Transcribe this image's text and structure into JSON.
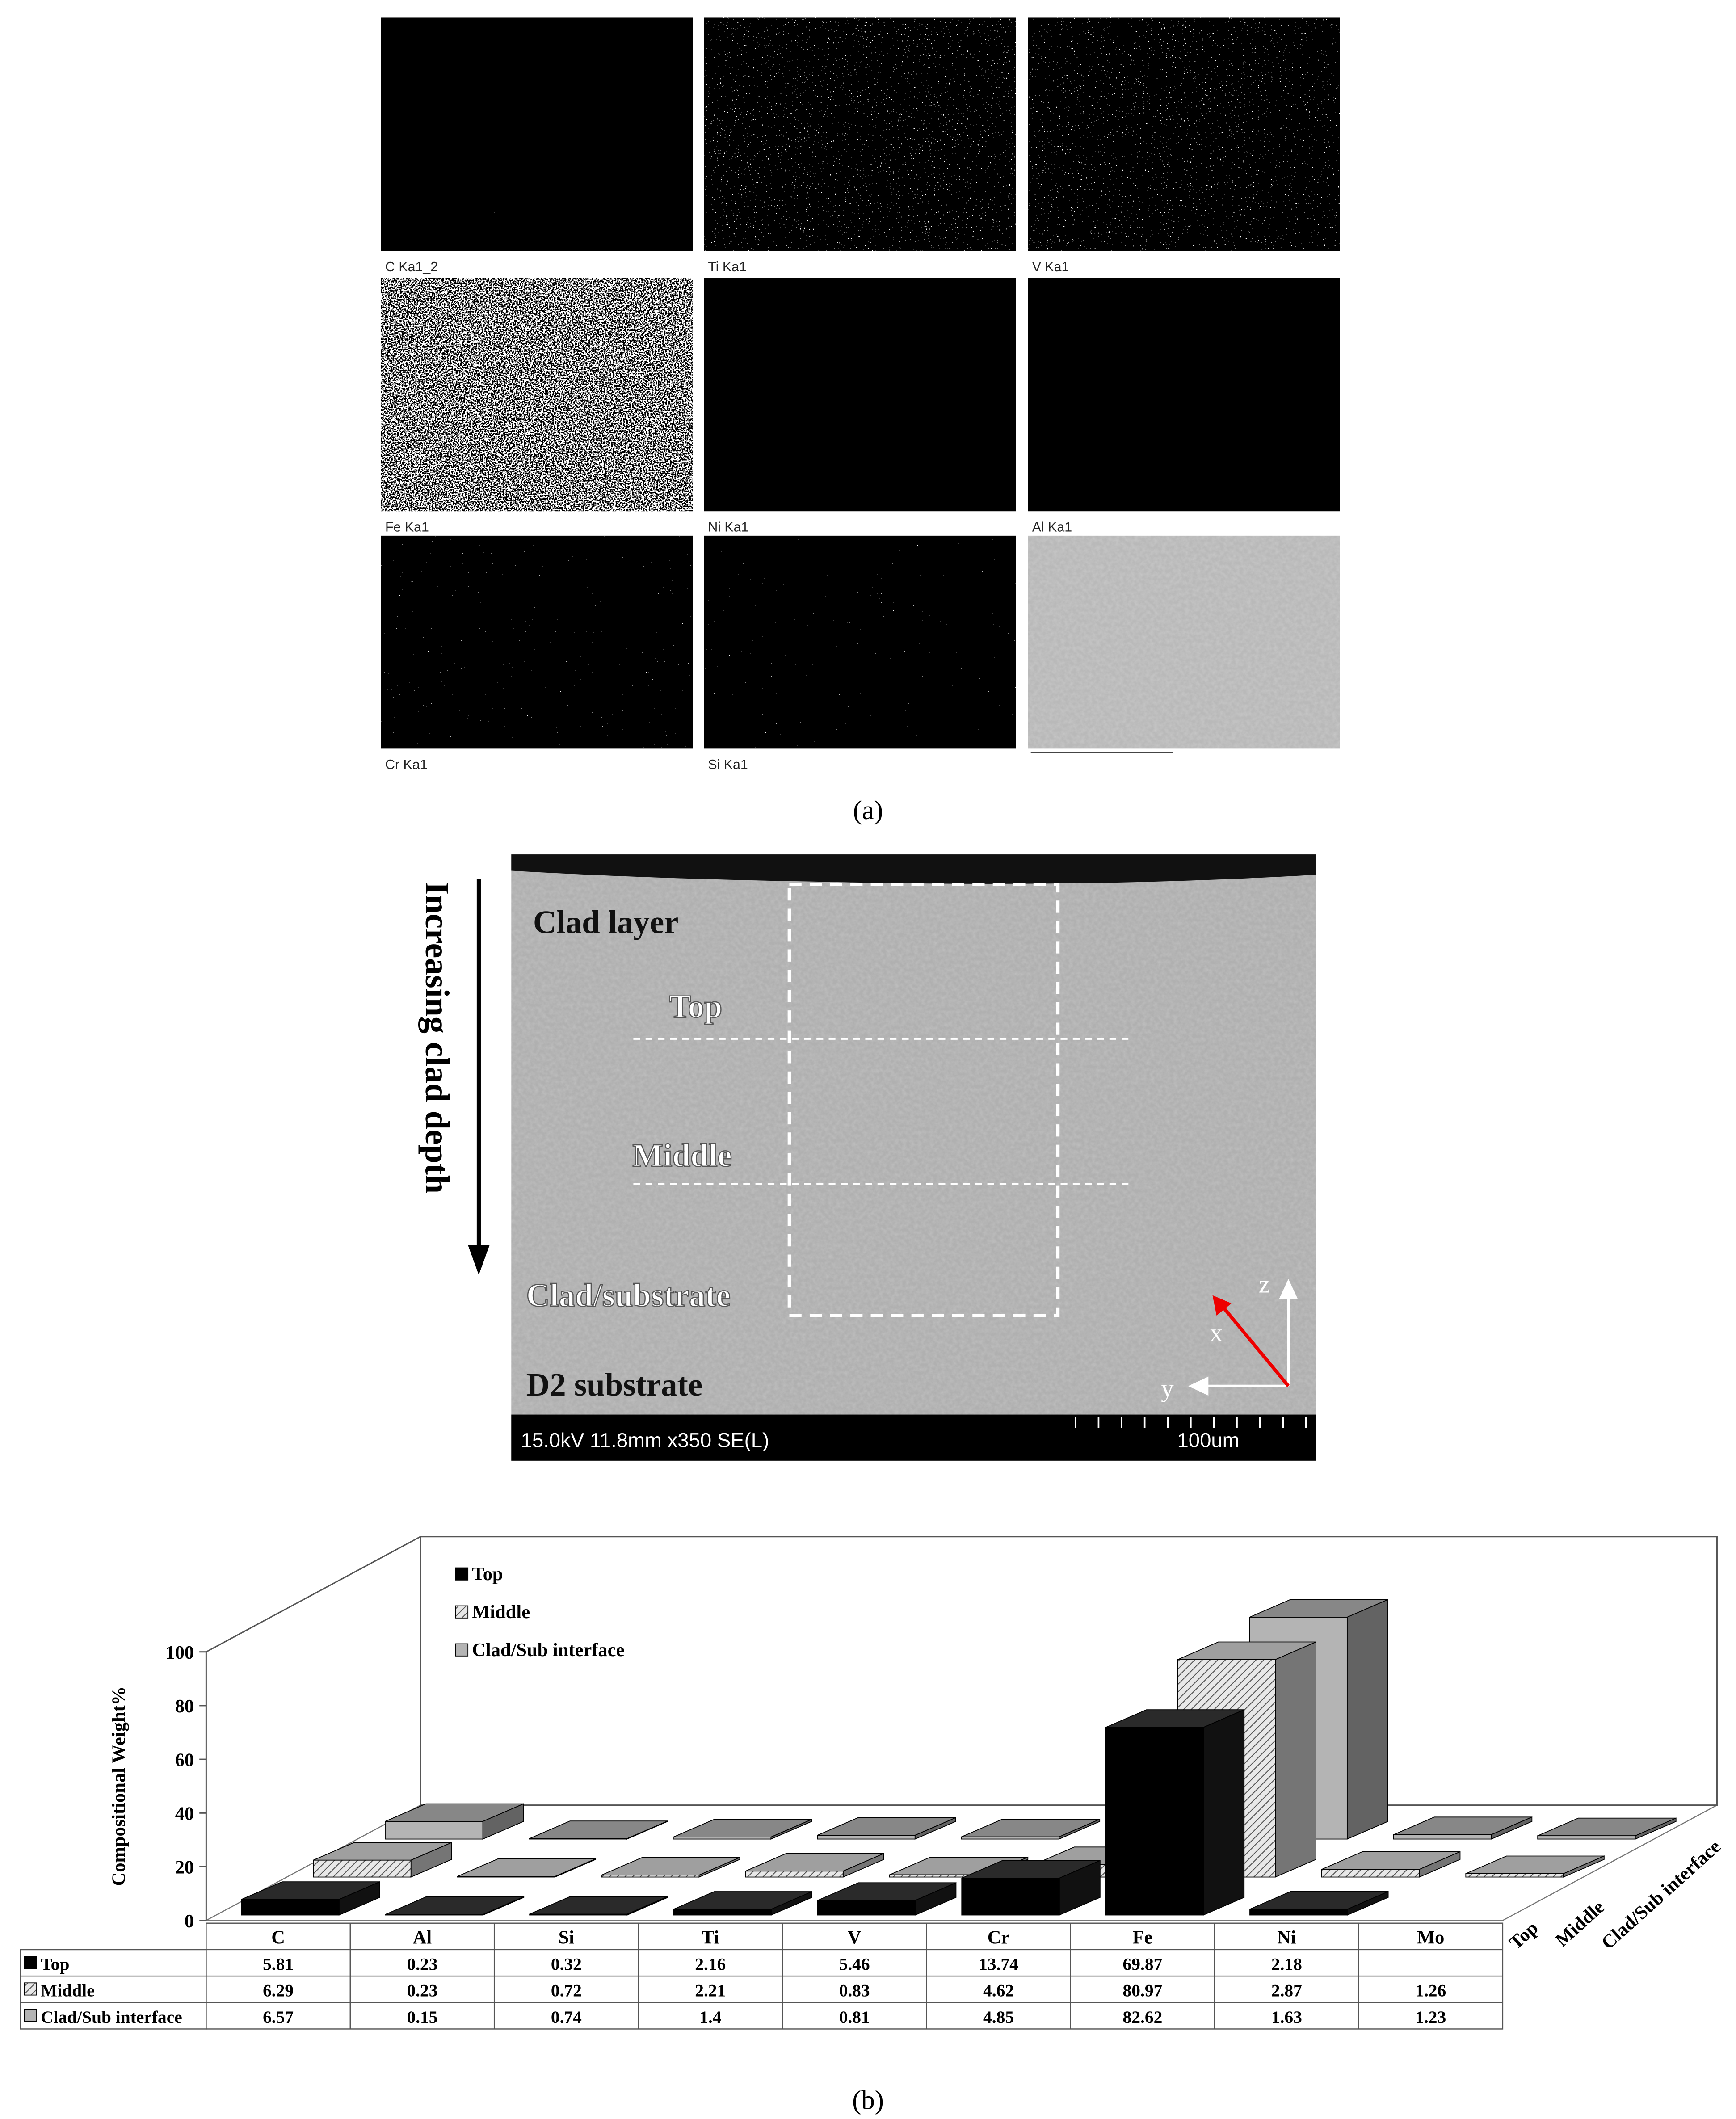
{
  "panel_a": {
    "maps": [
      {
        "label": "C Ka1_2",
        "density": 1
      },
      {
        "label": "Ti Ka1",
        "density": 3
      },
      {
        "label": "V Ka1",
        "density": 3
      },
      {
        "label": "Fe Ka1",
        "density": 6
      },
      {
        "label": "Ni Ka1",
        "density": 1
      },
      {
        "label": "Al Ka1",
        "density": 1
      },
      {
        "label": "Cr Ka1",
        "density": 2
      },
      {
        "label": "Si Ka1",
        "density": 2
      }
    ],
    "caption": "(a)"
  },
  "sem_image": {
    "arrow_label": "Increasing clad depth",
    "clad_layer": "Clad layer",
    "top": "Top",
    "middle": "Middle",
    "interface": "Clad/substrate",
    "substrate": "D2 substrate",
    "axis_z": "z",
    "axis_x": "x",
    "axis_y": "y",
    "info": "15.0kV 11.8mm x350 SE(L)",
    "scale_bar": "100um"
  },
  "chart_data": {
    "type": "bar3d",
    "y_label": "Compositional Weight%",
    "categories": [
      "C",
      "Al",
      "Si",
      "Ti",
      "V",
      "Cr",
      "Fe",
      "Ni",
      "Mo"
    ],
    "series": [
      {
        "name": "Top",
        "color": "#000000",
        "values": [
          5.81,
          0.23,
          0.32,
          2.16,
          5.46,
          13.74,
          69.87,
          2.18,
          null
        ]
      },
      {
        "name": "Middle",
        "color": "#d4d4d4",
        "pattern": "hatch",
        "values": [
          6.29,
          0.23,
          0.72,
          2.21,
          0.83,
          4.62,
          80.97,
          2.87,
          1.26
        ]
      },
      {
        "name": "Clad/Sub interface",
        "color": "#b4b4b4",
        "values": [
          6.57,
          0.15,
          0.74,
          1.4,
          0.81,
          4.85,
          82.62,
          1.63,
          1.23
        ]
      }
    ],
    "ylim": [
      0,
      100
    ],
    "yticks": [
      0,
      20,
      40,
      60,
      80,
      100
    ],
    "legend": "top-left",
    "data_table": true
  },
  "caption_b": "(b)"
}
